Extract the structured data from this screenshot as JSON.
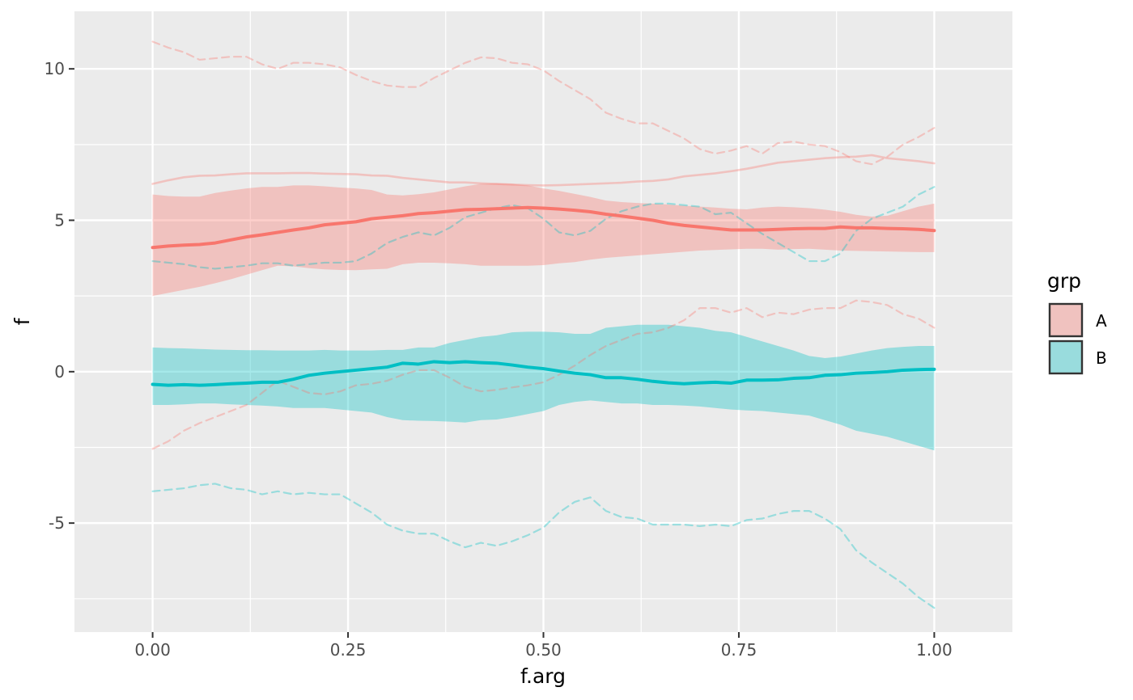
{
  "chart_data": {
    "type": "area",
    "xlabel": "f.arg",
    "ylabel": "f",
    "xlim": [
      -0.1,
      1.1
    ],
    "ylim": [
      -8.6,
      11.9
    ],
    "x_ticks": [
      0.0,
      0.25,
      0.5,
      0.75,
      1.0
    ],
    "x_tick_labels": [
      "0.00",
      "0.25",
      "0.50",
      "0.75",
      "1.00"
    ],
    "y_ticks": [
      -5,
      0,
      5,
      10
    ],
    "y_tick_labels": [
      "-5",
      "0",
      "5",
      "10"
    ],
    "grid": true,
    "background": "#ebebeb",
    "legend": {
      "title": "grp",
      "position": "right",
      "entries": [
        {
          "label": "A",
          "fill": "#f8766d"
        },
        {
          "label": "B",
          "fill": "#00bfc4"
        }
      ]
    },
    "series": [
      {
        "name": "A",
        "color": "#f8766d",
        "x": [
          0.0,
          0.02,
          0.04,
          0.06,
          0.08,
          0.1,
          0.12,
          0.14,
          0.16,
          0.18,
          0.2,
          0.22,
          0.24,
          0.26,
          0.28,
          0.3,
          0.32,
          0.34,
          0.36,
          0.38,
          0.4,
          0.42,
          0.44,
          0.46,
          0.48,
          0.5,
          0.52,
          0.54,
          0.56,
          0.58,
          0.6,
          0.62,
          0.64,
          0.66,
          0.68,
          0.7,
          0.72,
          0.74,
          0.76,
          0.78,
          0.8,
          0.82,
          0.84,
          0.86,
          0.88,
          0.9,
          0.92,
          0.94,
          0.96,
          0.98,
          1.0
        ],
        "mean": [
          4.1,
          4.15,
          4.18,
          4.2,
          4.25,
          4.35,
          4.45,
          4.52,
          4.6,
          4.68,
          4.75,
          4.85,
          4.9,
          4.95,
          5.05,
          5.1,
          5.15,
          5.22,
          5.25,
          5.3,
          5.35,
          5.36,
          5.38,
          5.4,
          5.42,
          5.4,
          5.37,
          5.33,
          5.28,
          5.2,
          5.14,
          5.07,
          5.0,
          4.9,
          4.83,
          4.78,
          4.73,
          4.68,
          4.68,
          4.68,
          4.7,
          4.72,
          4.73,
          4.73,
          4.78,
          4.75,
          4.75,
          4.73,
          4.72,
          4.7,
          4.66
        ],
        "lower": [
          2.5,
          2.6,
          2.7,
          2.8,
          2.92,
          3.05,
          3.2,
          3.35,
          3.5,
          3.48,
          3.42,
          3.38,
          3.36,
          3.35,
          3.38,
          3.4,
          3.55,
          3.6,
          3.6,
          3.58,
          3.55,
          3.5,
          3.5,
          3.5,
          3.5,
          3.52,
          3.58,
          3.62,
          3.7,
          3.76,
          3.8,
          3.84,
          3.88,
          3.92,
          3.96,
          4.0,
          4.02,
          4.04,
          4.06,
          4.06,
          4.03,
          4.05,
          4.06,
          4.03,
          4.0,
          3.99,
          3.98,
          3.97,
          3.96,
          3.95,
          3.95
        ],
        "upper": [
          5.85,
          5.8,
          5.78,
          5.78,
          5.9,
          5.98,
          6.05,
          6.1,
          6.1,
          6.15,
          6.15,
          6.12,
          6.08,
          6.05,
          6.0,
          5.85,
          5.82,
          5.86,
          5.92,
          6.02,
          6.12,
          6.2,
          6.22,
          6.2,
          6.15,
          6.05,
          5.97,
          5.87,
          5.77,
          5.65,
          5.6,
          5.57,
          5.55,
          5.52,
          5.48,
          5.45,
          5.42,
          5.38,
          5.36,
          5.42,
          5.45,
          5.43,
          5.4,
          5.35,
          5.28,
          5.18,
          5.12,
          5.15,
          5.3,
          5.45,
          5.55
        ],
        "solid_line": [
          6.2,
          6.32,
          6.42,
          6.47,
          6.48,
          6.52,
          6.55,
          6.55,
          6.55,
          6.56,
          6.56,
          6.54,
          6.53,
          6.52,
          6.48,
          6.47,
          6.4,
          6.35,
          6.3,
          6.25,
          6.25,
          6.22,
          6.2,
          6.18,
          6.16,
          6.15,
          6.16,
          6.18,
          6.2,
          6.22,
          6.24,
          6.28,
          6.3,
          6.35,
          6.45,
          6.5,
          6.55,
          6.62,
          6.7,
          6.8,
          6.9,
          6.95,
          7.0,
          7.05,
          7.08,
          7.1,
          7.15,
          7.05,
          7.0,
          6.95,
          6.88
        ],
        "dashed_upper": [
          10.9,
          10.7,
          10.55,
          10.3,
          10.35,
          10.4,
          10.4,
          10.15,
          10.0,
          10.2,
          10.2,
          10.15,
          10.05,
          9.8,
          9.6,
          9.45,
          9.4,
          9.4,
          9.7,
          9.95,
          10.2,
          10.38,
          10.35,
          10.2,
          10.15,
          9.95,
          9.6,
          9.3,
          9.0,
          8.55,
          8.35,
          8.2,
          8.2,
          7.95,
          7.7,
          7.35,
          7.2,
          7.3,
          7.45,
          7.2,
          7.55,
          7.6,
          7.5,
          7.45,
          7.25,
          6.95,
          6.85,
          7.1,
          7.5,
          7.75,
          8.05
        ],
        "dashed_lower": [
          -2.55,
          -2.3,
          -1.95,
          -1.7,
          -1.5,
          -1.3,
          -1.1,
          -0.7,
          -0.3,
          -0.5,
          -0.7,
          -0.75,
          -0.65,
          -0.45,
          -0.4,
          -0.3,
          -0.1,
          0.05,
          0.05,
          -0.2,
          -0.5,
          -0.65,
          -0.6,
          -0.52,
          -0.45,
          -0.35,
          -0.1,
          0.2,
          0.55,
          0.85,
          1.05,
          1.25,
          1.3,
          1.45,
          1.7,
          2.1,
          2.1,
          1.95,
          2.1,
          1.8,
          1.95,
          1.9,
          2.05,
          2.1,
          2.1,
          2.35,
          2.3,
          2.2,
          1.9,
          1.75,
          1.45
        ]
      },
      {
        "name": "B",
        "color": "#00bfc4",
        "x": [
          0.0,
          0.02,
          0.04,
          0.06,
          0.08,
          0.1,
          0.12,
          0.14,
          0.16,
          0.18,
          0.2,
          0.22,
          0.24,
          0.26,
          0.28,
          0.3,
          0.32,
          0.34,
          0.36,
          0.38,
          0.4,
          0.42,
          0.44,
          0.46,
          0.48,
          0.5,
          0.52,
          0.54,
          0.56,
          0.58,
          0.6,
          0.62,
          0.64,
          0.66,
          0.68,
          0.7,
          0.72,
          0.74,
          0.76,
          0.78,
          0.8,
          0.82,
          0.84,
          0.86,
          0.88,
          0.9,
          0.92,
          0.94,
          0.96,
          0.98,
          1.0
        ],
        "mean": [
          -0.42,
          -0.45,
          -0.43,
          -0.45,
          -0.43,
          -0.4,
          -0.38,
          -0.35,
          -0.35,
          -0.25,
          -0.12,
          -0.05,
          0.0,
          0.05,
          0.1,
          0.15,
          0.28,
          0.25,
          0.33,
          0.3,
          0.33,
          0.3,
          0.28,
          0.22,
          0.15,
          0.1,
          0.02,
          -0.05,
          -0.1,
          -0.2,
          -0.2,
          -0.25,
          -0.32,
          -0.37,
          -0.4,
          -0.37,
          -0.35,
          -0.38,
          -0.28,
          -0.28,
          -0.27,
          -0.22,
          -0.2,
          -0.12,
          -0.1,
          -0.05,
          -0.03,
          0.0,
          0.05,
          0.07,
          0.08
        ],
        "lower": [
          -1.1,
          -1.1,
          -1.08,
          -1.05,
          -1.05,
          -1.08,
          -1.1,
          -1.12,
          -1.15,
          -1.2,
          -1.2,
          -1.2,
          -1.25,
          -1.3,
          -1.35,
          -1.5,
          -1.6,
          -1.62,
          -1.63,
          -1.65,
          -1.68,
          -1.6,
          -1.58,
          -1.5,
          -1.4,
          -1.3,
          -1.1,
          -1.0,
          -0.95,
          -1.0,
          -1.05,
          -1.05,
          -1.1,
          -1.1,
          -1.12,
          -1.15,
          -1.2,
          -1.25,
          -1.28,
          -1.3,
          -1.35,
          -1.4,
          -1.45,
          -1.6,
          -1.75,
          -1.95,
          -2.05,
          -2.15,
          -2.3,
          -2.45,
          -2.6
        ],
        "upper": [
          0.8,
          0.78,
          0.77,
          0.75,
          0.73,
          0.72,
          0.71,
          0.71,
          0.7,
          0.7,
          0.7,
          0.72,
          0.7,
          0.7,
          0.7,
          0.72,
          0.72,
          0.8,
          0.8,
          0.95,
          1.05,
          1.15,
          1.2,
          1.3,
          1.32,
          1.32,
          1.3,
          1.25,
          1.25,
          1.45,
          1.5,
          1.55,
          1.55,
          1.55,
          1.5,
          1.45,
          1.35,
          1.3,
          1.15,
          1.0,
          0.85,
          0.7,
          0.52,
          0.45,
          0.5,
          0.6,
          0.7,
          0.78,
          0.82,
          0.85,
          0.85
        ],
        "dashed_upper": [
          3.65,
          3.6,
          3.55,
          3.45,
          3.4,
          3.45,
          3.5,
          3.58,
          3.58,
          3.5,
          3.55,
          3.6,
          3.6,
          3.65,
          3.9,
          4.25,
          4.45,
          4.6,
          4.5,
          4.75,
          5.1,
          5.25,
          5.4,
          5.5,
          5.4,
          5.05,
          4.6,
          4.5,
          4.65,
          5.05,
          5.3,
          5.45,
          5.55,
          5.55,
          5.5,
          5.45,
          5.2,
          5.25,
          4.9,
          4.55,
          4.25,
          3.95,
          3.65,
          3.65,
          3.9,
          4.65,
          5.05,
          5.25,
          5.45,
          5.85,
          6.1
        ],
        "dashed_lower": [
          -3.95,
          -3.9,
          -3.85,
          -3.75,
          -3.7,
          -3.85,
          -3.9,
          -4.05,
          -3.95,
          -4.05,
          -4.0,
          -4.05,
          -4.05,
          -4.35,
          -4.65,
          -5.05,
          -5.25,
          -5.35,
          -5.35,
          -5.6,
          -5.8,
          -5.65,
          -5.75,
          -5.6,
          -5.4,
          -5.15,
          -4.65,
          -4.3,
          -4.15,
          -4.6,
          -4.8,
          -4.85,
          -5.05,
          -5.05,
          -5.05,
          -5.1,
          -5.05,
          -5.1,
          -4.9,
          -4.85,
          -4.7,
          -4.6,
          -4.6,
          -4.85,
          -5.2,
          -5.9,
          -6.3,
          -6.65,
          -7.0,
          -7.45,
          -7.8
        ]
      }
    ]
  }
}
